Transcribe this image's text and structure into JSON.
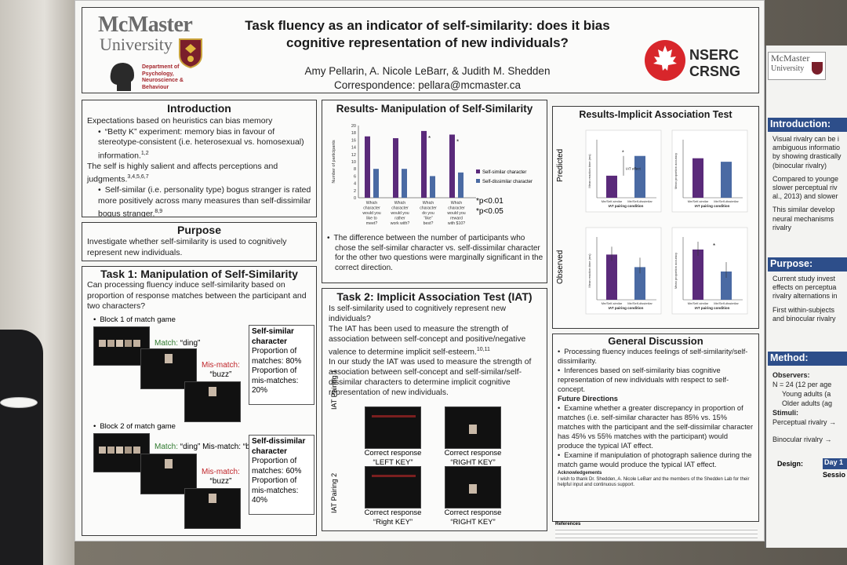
{
  "header": {
    "university_line1": "McMaster",
    "university_line2": "University",
    "department": [
      "Department of",
      "Psychology,",
      "Neuroscience &",
      "Behaviour"
    ],
    "title_line1": "Task fluency as an indicator of self-similarity: does it bias",
    "title_line2": "cognitive representation of new individuals?",
    "authors": "Amy Pellarin, A. Nicole LeBarr, & Judith M. Shedden",
    "correspondence": "Correspondence: pellara@mcmaster.ca",
    "nserc_line1": "NSERC",
    "nserc_line2": "CRSNG"
  },
  "introduction": {
    "heading": "Introduction",
    "p1": "Expectations based on heuristics can bias memory",
    "b1": "“Betty K” experiment: memory bias in favour of stereotype-consistent (i.e. heterosexual vs. homosexual) information.",
    "b1_ref": "1,2",
    "p2": "The self is highly salient and affects perceptions and judgments.",
    "p2_ref": "3,4,5,6,7",
    "b2": "Self-similar (i.e. personality type) bogus stranger is rated more positively across many measures than self-dissimilar bogus stranger.",
    "b2_ref": "8,9"
  },
  "purpose": {
    "heading": "Purpose",
    "text": "Investigate whether self-similarity is used to cognitively represent new individuals."
  },
  "task1": {
    "heading": "Task 1: Manipulation of Self-Similarity",
    "question": "Can processing fluency induce self-similarity based on proportion of response matches between the participant and two characters?",
    "block1": "Block 1 of match game",
    "block2": "Block 2 of match game",
    "match_label": "Match:",
    "match_word": "“ding”",
    "mismatch_label": "Mis-match:",
    "mismatch_word": "“buzz”",
    "block2_line": "“ding” Mis-match: “buzz”",
    "similar_box": {
      "title": "Self-similar character",
      "line1": "Proportion of matches: 80%",
      "line2": "Proportion of mis-matches: 20%"
    },
    "dissimilar_box": {
      "title": "Self-dissimilar character",
      "line1": "Proportion of matches: 60%",
      "line2": "Proportion of mis-matches: 40%"
    }
  },
  "results_manip": {
    "heading": "Results- Manipulation of Self-Similarity",
    "ylabel": "Number of participants",
    "legend_similar": "Self-similar character",
    "legend_dissimilar": "Self-dissimilar character",
    "categories": [
      "Which character would you like to meet?",
      "Which character would you rather work with?",
      "Which character do you “like” best?",
      "Which character would you reward with $10?"
    ],
    "sig1": "*p<0.01",
    "sig2": "*p<0.05",
    "bullet": "The difference between the number of participants who chose the self-similar character vs. self-dissimilar character for the other two questions were marginally significant in the correct direction."
  },
  "task2": {
    "heading": "Task 2: Implicit Association Test (IAT)",
    "p1": "Is self-similarity used to cognitively represent new individuals?",
    "p2": "The IAT has been used to measure the strength of association between self-concept and positive/negative valence to determine implicit self-esteem.",
    "p2_ref": "10,11",
    "p3": "In our study the IAT was used to measure the strength of association between self-concept and self-similar/self-dissimilar characters to determine implicit cognitive representation of new individuals.",
    "pairing1": "IAT Pairing 1",
    "pairing2": "IAT Pairing 2",
    "resp_a1": "Correct response",
    "resp_a2": "“LEFT KEY”",
    "resp_b1": "Correct response",
    "resp_b2": "“RIGHT KEY”",
    "resp_c1": "Correct response",
    "resp_c2": "“Right KEY”",
    "resp_d1": "Correct response",
    "resp_d2": "“RIGHT KEY”"
  },
  "results_iat": {
    "heading": "Results-Implicit Association Test",
    "predicted": "Predicted",
    "observed": "Observed",
    "iat_effect": "IAT effect",
    "xlabel": "IAT pairing condition",
    "tick_similar": "Me/Self-similar",
    "tick_dissimilar": "Me/Self-dissimilar",
    "ylabel_rt": "Mean reaction time (ms)",
    "ylabel_acc": "Mean proportion accuracy"
  },
  "discussion": {
    "heading": "General Discussion",
    "b1": "Processing fluency induces feelings of self-similarity/self-dissimilarity.",
    "b2": "Inferences based on self-similarity bias cognitive representation of new individuals with respect to self-concept.",
    "future_heading": "Future Directions",
    "f1": "Examine whether a greater discrepancy in proportion of matches (i.e. self-similar character has 85% vs. 15% matches with the participant and the self-dissimilar character has 45% vs 55% matches with the participant) would produce the typical IAT effect.",
    "f2": "Examine if manipulation of photograph salience during the match game would produce the typical IAT effect.",
    "ack_heading": "Acknowledgements",
    "ack": "I wish to thank Dr. Shedden, A. Nicole LeBarr and the members of the Shedden Lab for their helpful input and continuous support.",
    "refs_heading": "References"
  },
  "poster2": {
    "uni1": "McMaster",
    "uni2": "University",
    "intro_heading": "Introduction:",
    "intro_lines": [
      "Visual rivalry can be i",
      "ambiguous informatio",
      "by showing drastically",
      "(binocular rivalry)",
      "Compared to younge",
      "slower perceptual riv",
      "al., 2013) and slower",
      "This similar develop",
      "neural mechanisms",
      "rivalry"
    ],
    "purpose_heading": "Purpose:",
    "purpose_lines": [
      "Current study invest",
      "effects on perceptua",
      "rivalry alternations in",
      "First within-subjects",
      "and binocular rivalry"
    ],
    "method_heading": "Method:",
    "observers": "Observers:",
    "n_line": "N = 24 (12 per age",
    "young": "Young adults (a",
    "older": "Older adults (ag",
    "stimuli": "Stimuli:",
    "perc": "Perceptual rivalry →",
    "bino": "Binocular rivalry →",
    "design": "Design:",
    "day1": "Day 1",
    "session": "Sessio"
  }
}
